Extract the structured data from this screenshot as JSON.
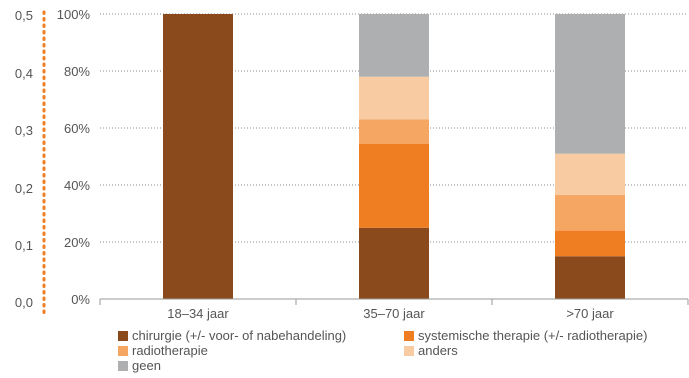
{
  "chart_data": {
    "type": "bar",
    "stacked": true,
    "categories": [
      "18–34 jaar",
      "35–70 jaar",
      ">70 jaar"
    ],
    "series": [
      {
        "name": "chirurgie (+/- voor- of nabehandeling)",
        "color": "#8b4a1c",
        "values": [
          100,
          25,
          15
        ]
      },
      {
        "name": "systemische therapie (+/- radiotherapie)",
        "color": "#ef7d22",
        "values": [
          0,
          29.5,
          9
        ]
      },
      {
        "name": "radiotherapie",
        "color": "#f5a663",
        "values": [
          0,
          8.5,
          12.5
        ]
      },
      {
        "name": "anders",
        "color": "#f8cba3",
        "values": [
          0,
          15,
          14.5
        ]
      },
      {
        "name": "geen",
        "color": "#aeafb1",
        "values": [
          0,
          22,
          49
        ]
      }
    ],
    "ylim": [
      0,
      100
    ],
    "y_ticks": [
      "0%",
      "20%",
      "40%",
      "60%",
      "80%",
      "100%"
    ],
    "y_tick_values": [
      0,
      20,
      40,
      60,
      80,
      100
    ],
    "secondary_axis": {
      "ylim": [
        0,
        0.5
      ],
      "ticks": [
        "0,0",
        "0,1",
        "0,2",
        "0,3",
        "0,4",
        "0,5"
      ],
      "tick_values": [
        0,
        0.1,
        0.2,
        0.3,
        0.4,
        0.5
      ],
      "line_color": "#ef7d22"
    },
    "grid": true,
    "legend_position": "bottom"
  }
}
